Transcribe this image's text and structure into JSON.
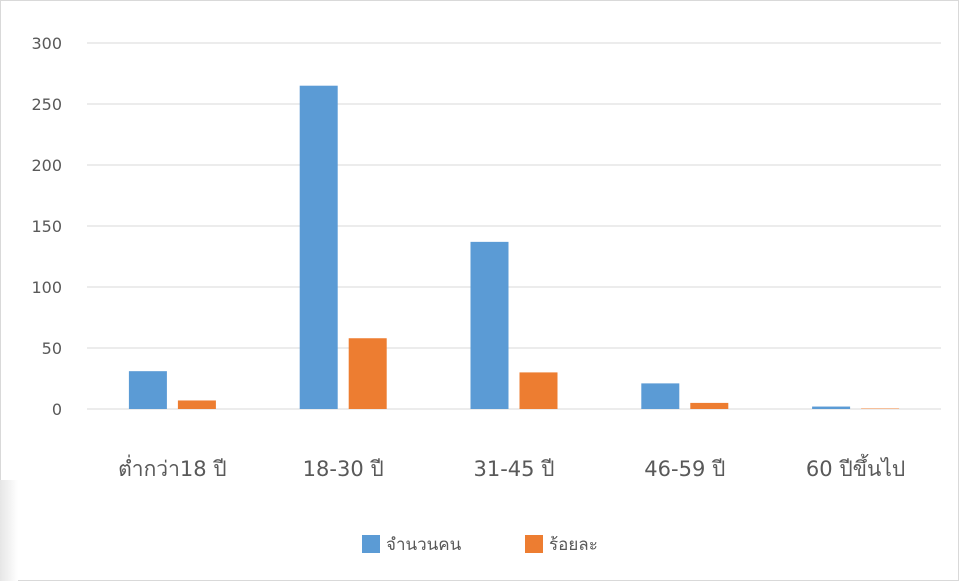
{
  "chart_data": {
    "type": "bar",
    "categories": [
      "ต่ำกว่า18 ปี",
      "18-30 ปี",
      "31-45 ปี",
      "46-59 ปี",
      "60 ปีขึ้นไป"
    ],
    "series": [
      {
        "name": "จำนวนคน",
        "values": [
          31,
          265,
          137,
          21,
          2
        ],
        "color": "#5b9bd5"
      },
      {
        "name": "ร้อยละ",
        "values": [
          7,
          58,
          30,
          5,
          0.4
        ],
        "color": "#ed7d31"
      }
    ],
    "ylim": [
      0,
      300
    ],
    "yticks": [
      "0",
      "50",
      "100",
      "150",
      "200",
      "250",
      "300"
    ],
    "grid": true,
    "legend_position": "bottom",
    "colors": {
      "gridline": "#d9d9d9",
      "text": "#595959"
    }
  }
}
